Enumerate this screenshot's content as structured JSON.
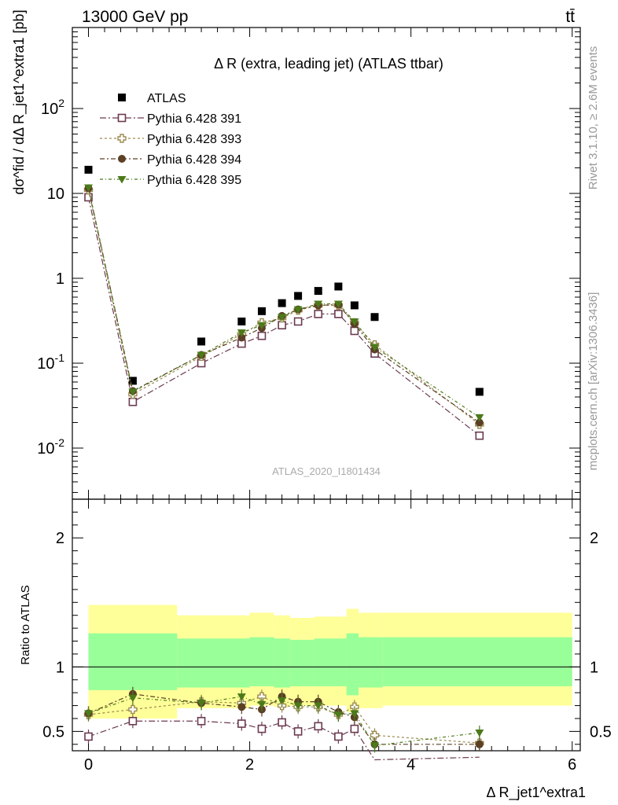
{
  "header": {
    "energy_label": "13000 GeV pp",
    "process_label": "tt̄"
  },
  "side_labels": {
    "rivet": "Rivet 3.1.10, ≥ 2.6M events",
    "mcplots": "mcplots.cern.ch [arXiv:1306.3436]"
  },
  "colors": {
    "atlas": "#000000",
    "p391": "#6b3a50",
    "p393": "#9c8a50",
    "p394": "#5b4025",
    "p395": "#4c7a1a",
    "band_outer": "#ffff99",
    "band_inner": "#99ff99"
  },
  "chart_data": [
    {
      "type": "scatter",
      "title": "Δ R (extra, leading jet) (ATLAS ttbar)",
      "ylabel": "dσ^fid / dΔ R_jet1^extra1 [pb]",
      "xlim": [
        -0.2,
        6.1
      ],
      "ylim": [
        0.0025,
        900
      ],
      "yscale": "log",
      "ytick_labels": [
        "10^-2",
        "10^-1",
        "1",
        "10",
        "10^2"
      ],
      "watermark": "ATLAS_2020_I1801434",
      "legend_position": "top-left",
      "x": [
        0.0,
        0.55,
        1.4,
        1.9,
        2.15,
        2.4,
        2.6,
        2.85,
        3.1,
        3.3,
        3.55,
        4.85
      ],
      "series": [
        {
          "name": "ATLAS",
          "values": [
            19,
            0.062,
            0.18,
            0.31,
            0.41,
            0.51,
            0.62,
            0.71,
            0.8,
            0.48,
            0.35,
            0.046
          ]
        },
        {
          "name": "Pythia 6.428 391",
          "values": [
            9,
            0.035,
            0.1,
            0.17,
            0.21,
            0.28,
            0.31,
            0.38,
            0.38,
            0.24,
            0.13,
            0.014
          ]
        },
        {
          "name": "Pythia 6.428 393",
          "values": [
            11,
            0.043,
            0.12,
            0.22,
            0.3,
            0.34,
            0.42,
            0.48,
            0.48,
            0.3,
            0.165,
            0.019
          ]
        },
        {
          "name": "Pythia 6.428 394",
          "values": [
            11.5,
            0.047,
            0.125,
            0.2,
            0.26,
            0.36,
            0.43,
            0.48,
            0.49,
            0.29,
            0.145,
            0.02
          ]
        },
        {
          "name": "Pythia 6.428 395",
          "values": [
            11.7,
            0.046,
            0.125,
            0.23,
            0.28,
            0.35,
            0.43,
            0.5,
            0.5,
            0.31,
            0.155,
            0.023
          ]
        }
      ]
    },
    {
      "type": "scatter",
      "ylabel": "Ratio to ATLAS",
      "xlabel": "Δ R_jet1^extra1",
      "xlim": [
        -0.2,
        6.1
      ],
      "ylim": [
        0.35,
        2.3
      ],
      "xtick_labels": [
        "0",
        "2",
        "4",
        "6"
      ],
      "ytick_labels": [
        "0.5",
        "1",
        "2"
      ],
      "x": [
        0.0,
        0.55,
        1.4,
        1.9,
        2.15,
        2.4,
        2.6,
        2.85,
        3.1,
        3.3,
        3.55,
        4.85
      ],
      "series": [
        {
          "name": "Pythia 6.428 391",
          "values": [
            0.46,
            0.58,
            0.58,
            0.56,
            0.52,
            0.57,
            0.5,
            0.54,
            0.46,
            0.52,
            0.28,
            0.3
          ]
        },
        {
          "name": "Pythia 6.428 393",
          "values": [
            0.63,
            0.67,
            0.73,
            0.72,
            0.77,
            0.7,
            0.69,
            0.69,
            0.63,
            0.69,
            0.47,
            0.41
          ]
        },
        {
          "name": "Pythia 6.428 394",
          "values": [
            0.64,
            0.79,
            0.72,
            0.69,
            0.67,
            0.77,
            0.73,
            0.73,
            0.65,
            0.61,
            0.4,
            0.4
          ]
        },
        {
          "name": "Pythia 6.428 395",
          "values": [
            0.64,
            0.76,
            0.72,
            0.77,
            0.71,
            0.74,
            0.7,
            0.7,
            0.63,
            0.64,
            0.39,
            0.49
          ]
        }
      ],
      "uncertainty_band": {
        "edges": [
          0.0,
          1.1,
          2.0,
          2.3,
          2.5,
          2.8,
          3.2,
          3.35,
          3.65,
          6.0
        ],
        "outer_low": [
          0.6,
          0.68,
          0.7,
          0.69,
          0.7,
          0.7,
          0.65,
          0.68,
          0.7
        ],
        "outer_high": [
          1.48,
          1.4,
          1.42,
          1.4,
          1.38,
          1.39,
          1.45,
          1.42,
          1.42
        ],
        "inner_low": [
          0.82,
          0.84,
          0.85,
          0.84,
          0.85,
          0.85,
          0.78,
          0.84,
          0.85
        ],
        "inner_high": [
          1.26,
          1.22,
          1.23,
          1.22,
          1.21,
          1.22,
          1.26,
          1.23,
          1.23
        ]
      }
    }
  ]
}
